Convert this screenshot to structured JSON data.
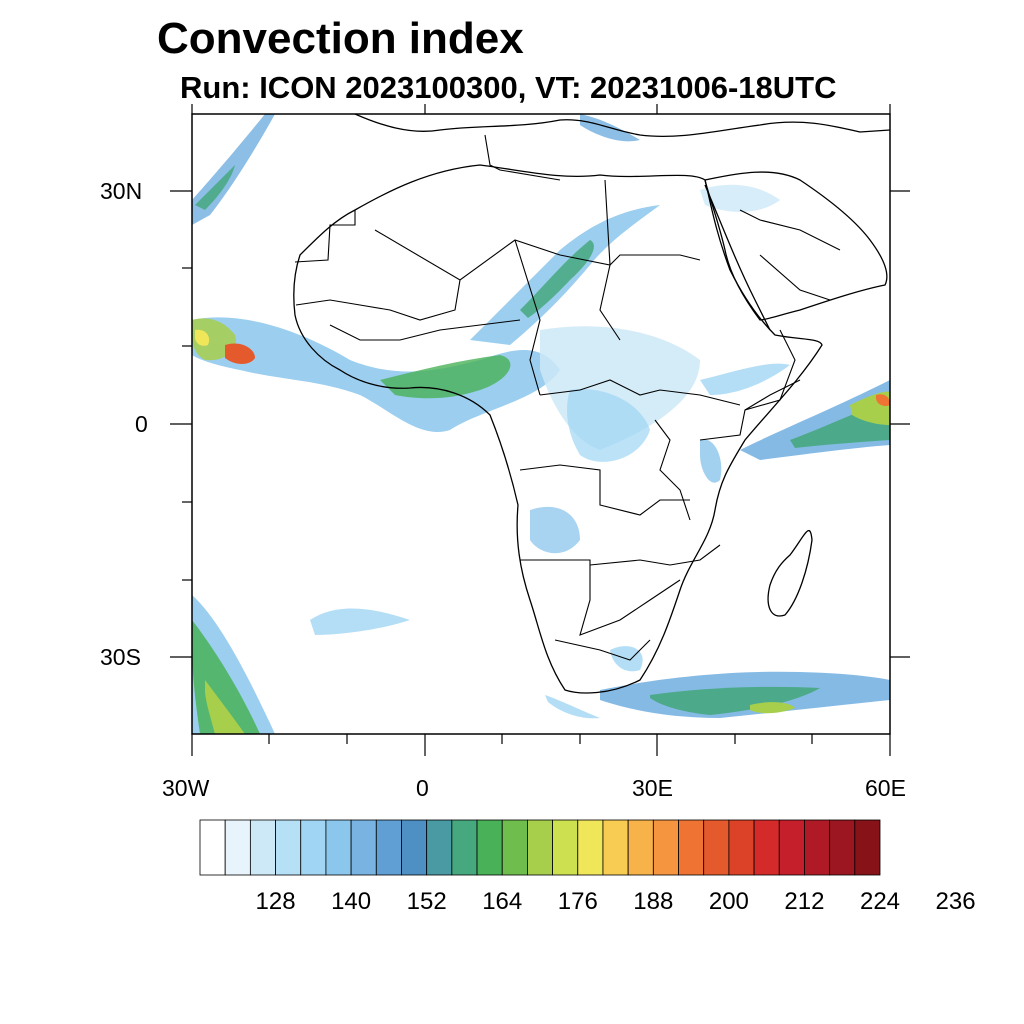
{
  "title": "Convection index",
  "subtitle": "Run: ICON 2023100300,  VT: 20231006-18UTC",
  "map": {
    "projection": "cylindrical-equidistant",
    "lon_range": [
      -30,
      60
    ],
    "lat_range": [
      -40,
      40
    ],
    "lat_labels": [
      "30N",
      "0",
      "30S"
    ],
    "lon_labels": [
      "30W",
      "0",
      "30E",
      "60E"
    ],
    "field": "convection-index"
  },
  "colorbar": {
    "colors": [
      "#ffffff",
      "#e8f4fb",
      "#cde8f7",
      "#b6e0f6",
      "#a0d6f4",
      "#8bc6ec",
      "#78b3e2",
      "#5f9fd4",
      "#4e90c4",
      "#4a9aa3",
      "#46a87f",
      "#49b258",
      "#6fbe4d",
      "#a7cf4c",
      "#cde04f",
      "#f0e65a",
      "#f8cc52",
      "#f8b24a",
      "#f59540",
      "#ef7433",
      "#e55a2c",
      "#dc4228",
      "#d42a2a",
      "#c41f2a",
      "#b01a26",
      "#9c1621",
      "#871318"
    ],
    "tick_labels": [
      "128",
      "140",
      "152",
      "164",
      "176",
      "188",
      "200",
      "212",
      "224",
      "236"
    ]
  }
}
